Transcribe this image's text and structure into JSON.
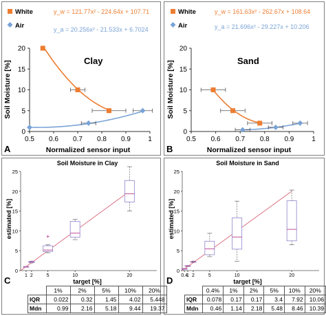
{
  "panels": [
    {
      "letter": "A",
      "title": "Clay",
      "xlabel": "Normalized sensor input",
      "ylabel": "Soil Moisture [%]",
      "legend": {
        "white_label": "White",
        "air_label": "Air",
        "white_eq": "y_w = 121.77x² - 224.64x + 107.71",
        "air_eq": "y_a = 20.256x² - 21.533x + 6.7024"
      },
      "x_ticks": [
        "0.5",
        "0.6",
        "0.7",
        "0.8",
        "0.9",
        "1"
      ],
      "y_ticks": [
        "0",
        "5",
        "10",
        "15",
        "20"
      ]
    },
    {
      "letter": "B",
      "title": "Sand",
      "xlabel": "Normalized sensor input",
      "ylabel": "Soil Moisture [%]",
      "legend": {
        "white_label": "White",
        "air_label": "Air",
        "white_eq": "y_w = 161.63x² - 262.67x + 108.64",
        "air_eq": "y_a = 21.696x² - 29.227x + 10.206"
      },
      "x_ticks": [
        "0.5",
        "0.6",
        "0.7",
        "0.8",
        "0.9",
        "1"
      ],
      "y_ticks": [
        "0",
        "5",
        "10",
        "15",
        "20"
      ]
    },
    {
      "letter": "C",
      "title": "Soil Moisture in Clay",
      "xlabel": "target [%]",
      "ylabel": "estimated [%]",
      "x_ticks": [
        "1",
        "2",
        "5",
        "10",
        "20"
      ],
      "y_ticks": [
        "0",
        "5",
        "10",
        "15",
        "20",
        "25"
      ],
      "table": {
        "headers": [
          "1%",
          "2%",
          "5%",
          "10%",
          "20%"
        ],
        "rows": [
          {
            "label": "IQR",
            "values": [
              "0.022",
              "0.32",
              "1.45",
              "4.02",
              "5.448"
            ]
          },
          {
            "label": "Mdn",
            "values": [
              "0.99",
              "2.16",
              "5.18",
              "9.44",
              "19.37"
            ]
          }
        ]
      }
    },
    {
      "letter": "D",
      "title": "Soil Moisture in Sand",
      "xlabel": "target [%]",
      "ylabel": "estimated [%]",
      "x_ticks": [
        "0.4",
        "1",
        "2",
        "5",
        "10",
        "20"
      ],
      "y_ticks": [
        "0",
        "5",
        "10",
        "15",
        "20",
        "25"
      ],
      "table": {
        "headers": [
          "0.4%",
          "1%",
          "2%",
          "5%",
          "10%",
          "20%"
        ],
        "rows": [
          {
            "label": "IQR",
            "values": [
              "0.078",
              "0.17",
              "0.17",
              "3.4",
              "7.92",
              "10.06"
            ]
          },
          {
            "label": "Mdn",
            "values": [
              "0.46",
              "1.14",
              "2.18",
              "5.48",
              "8.46",
              "10.39"
            ]
          }
        ]
      }
    }
  ],
  "colors": {
    "white": "#ed7d31",
    "air": "#7aa3d6",
    "box": "#9b8fd0",
    "median": "#c0509b",
    "line": "#d9667a",
    "axis": "#333333"
  },
  "chart_data": [
    {
      "type": "scatter",
      "x_range": [
        0.5,
        1
      ],
      "y_range": [
        0,
        20
      ],
      "series": [
        {
          "name": "White",
          "points": [
            {
              "x": 0.555,
              "y": 20,
              "xerr": 0
            },
            {
              "x": 0.7,
              "y": 10,
              "xerr": 0.03
            },
            {
              "x": 0.83,
              "y": 5,
              "xerr": 0.07
            }
          ],
          "fit": {
            "a": 121.77,
            "b": -224.64,
            "c": 107.71,
            "x_from": 0.555,
            "x_to": 0.83
          }
        },
        {
          "name": "Air",
          "points": [
            {
              "x": 0.5,
              "y": 1,
              "xerr": 0
            },
            {
              "x": 0.745,
              "y": 2,
              "xerr": 0.03
            },
            {
              "x": 0.97,
              "y": 5,
              "xerr": 0.04
            }
          ],
          "fit": {
            "a": 20.256,
            "b": -21.533,
            "c": 6.7024,
            "x_from": 0.5,
            "x_to": 0.97
          }
        }
      ]
    },
    {
      "type": "scatter",
      "x_range": [
        0.5,
        1
      ],
      "y_range": [
        0,
        20
      ],
      "series": [
        {
          "name": "White",
          "points": [
            {
              "x": 0.59,
              "y": 10,
              "xerr": 0.05
            },
            {
              "x": 0.67,
              "y": 5,
              "xerr": 0.05
            },
            {
              "x": 0.78,
              "y": 2,
              "xerr": 0.05
            }
          ],
          "fit": {
            "a": 161.63,
            "b": -262.67,
            "c": 108.64,
            "x_from": 0.59,
            "x_to": 0.78
          }
        },
        {
          "name": "Air",
          "points": [
            {
              "x": 0.71,
              "y": 0.4,
              "xerr": 0.03
            },
            {
              "x": 0.845,
              "y": 1,
              "xerr": 0.03
            },
            {
              "x": 0.945,
              "y": 2,
              "xerr": 0.03
            }
          ],
          "fit": {
            "a": 21.696,
            "b": -29.227,
            "c": 10.206,
            "x_from": 0.71,
            "x_to": 0.945
          }
        }
      ]
    },
    {
      "type": "box",
      "x_range": [
        0,
        25
      ],
      "y_range": [
        0,
        25
      ],
      "identity_line": [
        0,
        20
      ],
      "boxes": [
        {
          "target": 1,
          "min": 0.97,
          "q1": 0.98,
          "median": 0.99,
          "q3": 1.0,
          "max": 1.01,
          "outliers": []
        },
        {
          "target": 2,
          "min": 1.9,
          "q1": 2.0,
          "median": 2.16,
          "q3": 2.32,
          "max": 2.4,
          "outliers": []
        },
        {
          "target": 5,
          "min": 4.5,
          "q1": 4.8,
          "median": 5.18,
          "q3": 6.25,
          "max": 6.5,
          "outliers": [
            8.6
          ]
        },
        {
          "target": 10,
          "min": 7.8,
          "q1": 8.4,
          "median": 9.44,
          "q3": 12.4,
          "max": 12.9,
          "outliers": []
        },
        {
          "target": 20,
          "min": 15.0,
          "q1": 17.3,
          "median": 19.37,
          "q3": 22.7,
          "max": 26.2,
          "outliers": []
        }
      ]
    },
    {
      "type": "box",
      "x_range": [
        0,
        25
      ],
      "y_range": [
        0,
        25
      ],
      "identity_line": [
        0,
        20
      ],
      "boxes": [
        {
          "target": 0.4,
          "min": 0.35,
          "q1": 0.42,
          "median": 0.46,
          "q3": 0.5,
          "max": 0.55,
          "outliers": []
        },
        {
          "target": 1,
          "min": 1.0,
          "q1": 1.05,
          "median": 1.14,
          "q3": 1.22,
          "max": 1.3,
          "outliers": []
        },
        {
          "target": 2,
          "min": 2.0,
          "q1": 2.1,
          "median": 2.18,
          "q3": 2.27,
          "max": 2.4,
          "outliers": []
        },
        {
          "target": 5,
          "min": 3.5,
          "q1": 4.0,
          "median": 5.48,
          "q3": 7.4,
          "max": 9.4,
          "outliers": []
        },
        {
          "target": 10,
          "min": 2.3,
          "q1": 5.4,
          "median": 8.46,
          "q3": 13.3,
          "max": 17.5,
          "outliers": []
        },
        {
          "target": 20,
          "min": 6.5,
          "q1": 7.5,
          "median": 10.39,
          "q3": 17.6,
          "max": 20.3,
          "outliers": []
        }
      ]
    }
  ]
}
